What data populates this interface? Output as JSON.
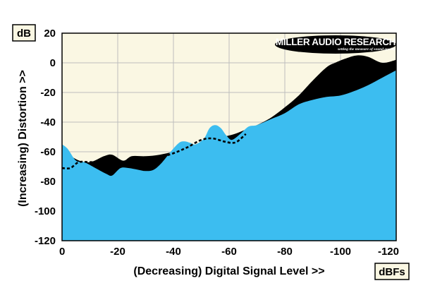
{
  "chart_data": {
    "type": "area",
    "title": "",
    "xlabel": "(Decreasing) Digital Signal Level >>",
    "ylabel": "(Increasing) Distortion >>",
    "x_unit": "dBFs",
    "y_unit": "dB",
    "xlim": [
      0,
      -120
    ],
    "ylim": [
      -120,
      20
    ],
    "x_ticks": [
      0,
      -20,
      -40,
      -60,
      -80,
      -100,
      -120
    ],
    "x_tick_labels": [
      "0",
      "-20",
      "-40",
      "-60",
      "-80",
      "-100",
      "-120"
    ],
    "y_ticks": [
      20,
      0,
      -20,
      -40,
      -60,
      -80,
      -100,
      -120
    ],
    "y_tick_labels": [
      "20",
      "0",
      "-20",
      "-40",
      "-60",
      "-80",
      "-100",
      "-120"
    ],
    "grid": true,
    "colors": {
      "plot_background": "#faf7e3",
      "area_fill": "#3cbdf0",
      "upper_fill": "#000000",
      "grid": "#bdbdbd"
    },
    "series": [
      {
        "style": "filled-black",
        "x": [
          0,
          -5,
          -10,
          -15,
          -18,
          -22,
          -25,
          -30,
          -35,
          -40,
          -45,
          -50,
          -55,
          -58,
          -62,
          -66,
          -70,
          -75,
          -80,
          -85,
          -90,
          -95,
          -98,
          -102,
          -106,
          -110,
          -115,
          -120
        ],
        "y": [
          -58,
          -65,
          -67,
          -63,
          -62,
          -66,
          -63,
          -63,
          -62,
          -60,
          -58,
          -55,
          -52,
          -50,
          -48,
          -45,
          -42,
          -37,
          -30,
          -22,
          -12,
          -3,
          0,
          3,
          5,
          4,
          0,
          2
        ]
      },
      {
        "style": "filled-blue",
        "x": [
          0,
          -2,
          -5,
          -8,
          -12,
          -16,
          -18,
          -21,
          -24,
          -27,
          -30,
          -33,
          -36,
          -39,
          -42,
          -44,
          -46,
          -48,
          -51,
          -53,
          -55,
          -57,
          -59,
          -61,
          -64,
          -67,
          -70,
          -75,
          -80,
          -85,
          -90,
          -95,
          -100,
          -105,
          -110,
          -115,
          -120
        ],
        "y": [
          -55,
          -58,
          -66,
          -67,
          -71,
          -75,
          -76,
          -71,
          -71,
          -72,
          -73,
          -72,
          -67,
          -60,
          -54,
          -53,
          -54,
          -55,
          -51,
          -44,
          -42,
          -44,
          -49,
          -52,
          -48,
          -43,
          -42,
          -38,
          -34,
          -28,
          -25,
          -23,
          -22,
          -19,
          -15,
          -10,
          -5
        ]
      },
      {
        "style": "dashed",
        "x": [
          0,
          -3,
          -6,
          -10,
          -15,
          -20,
          -25,
          -30,
          -35,
          -40,
          -45,
          -50,
          -54,
          -58,
          -61,
          -63,
          -66
        ],
        "y": [
          -71,
          -71,
          -67,
          -67,
          -67,
          -67,
          -67,
          -67,
          -64,
          -61,
          -57,
          -52,
          -51,
          -53,
          -54,
          -53,
          -48
        ]
      }
    ]
  },
  "logo": {
    "name": "MILLER AUDIO RESEARCH",
    "tagline": "setting the measure of sound quality"
  }
}
